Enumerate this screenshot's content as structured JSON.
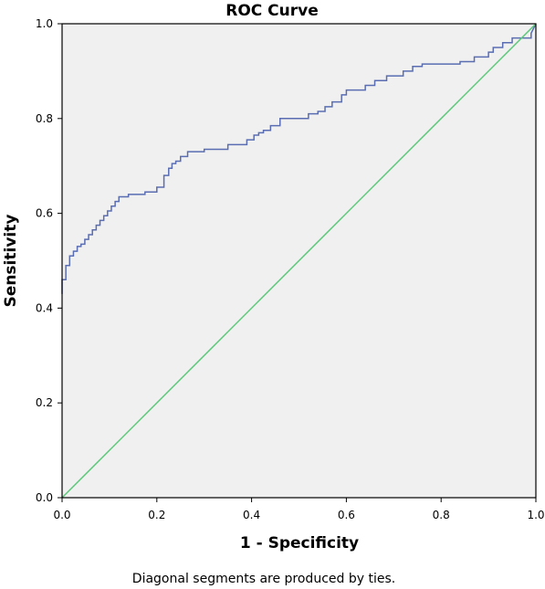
{
  "chart_data": {
    "type": "line",
    "title": "ROC Curve",
    "xlabel": "1 - Specificity",
    "ylabel": "Sensitivity",
    "xlim": [
      0.0,
      1.0
    ],
    "ylim": [
      0.0,
      1.0
    ],
    "x_ticks": [
      "0.0",
      "0.2",
      "0.4",
      "0.6",
      "0.8",
      "1.0"
    ],
    "y_ticks": [
      "0.0",
      "0.2",
      "0.4",
      "0.6",
      "0.8",
      "1.0"
    ],
    "grid": false,
    "plot_background": "#f0f0f0",
    "series": [
      {
        "color": "#5a6db2",
        "step": true,
        "x": [
          0.0,
          0.0,
          0.008,
          0.008,
          0.016,
          0.016,
          0.024,
          0.024,
          0.032,
          0.032,
          0.04,
          0.04,
          0.048,
          0.048,
          0.056,
          0.056,
          0.064,
          0.064,
          0.072,
          0.072,
          0.08,
          0.08,
          0.088,
          0.088,
          0.096,
          0.096,
          0.104,
          0.104,
          0.112,
          0.112,
          0.12,
          0.12,
          0.14,
          0.14,
          0.175,
          0.175,
          0.2,
          0.2,
          0.215,
          0.215,
          0.225,
          0.225,
          0.232,
          0.232,
          0.24,
          0.24,
          0.25,
          0.25,
          0.265,
          0.265,
          0.3,
          0.3,
          0.35,
          0.35,
          0.39,
          0.39,
          0.405,
          0.405,
          0.415,
          0.415,
          0.425,
          0.425,
          0.44,
          0.44,
          0.46,
          0.46,
          0.52,
          0.52,
          0.54,
          0.54,
          0.555,
          0.555,
          0.57,
          0.57,
          0.59,
          0.59,
          0.6,
          0.6,
          0.64,
          0.64,
          0.66,
          0.66,
          0.685,
          0.685,
          0.72,
          0.72,
          0.74,
          0.74,
          0.76,
          0.76,
          0.84,
          0.84,
          0.87,
          0.87,
          0.9,
          0.9,
          0.91,
          0.91,
          0.93,
          0.93,
          0.95,
          0.95,
          0.99,
          0.99,
          1.0
        ],
        "y": [
          0.43,
          0.46,
          0.46,
          0.49,
          0.49,
          0.51,
          0.51,
          0.52,
          0.52,
          0.53,
          0.53,
          0.535,
          0.535,
          0.545,
          0.545,
          0.555,
          0.555,
          0.565,
          0.565,
          0.575,
          0.575,
          0.585,
          0.585,
          0.595,
          0.595,
          0.605,
          0.605,
          0.615,
          0.615,
          0.625,
          0.625,
          0.635,
          0.635,
          0.64,
          0.64,
          0.645,
          0.645,
          0.655,
          0.655,
          0.68,
          0.68,
          0.695,
          0.695,
          0.705,
          0.705,
          0.71,
          0.71,
          0.72,
          0.72,
          0.73,
          0.73,
          0.735,
          0.735,
          0.745,
          0.745,
          0.755,
          0.755,
          0.765,
          0.765,
          0.77,
          0.77,
          0.775,
          0.775,
          0.785,
          0.785,
          0.8,
          0.8,
          0.81,
          0.81,
          0.815,
          0.815,
          0.825,
          0.825,
          0.835,
          0.835,
          0.85,
          0.85,
          0.86,
          0.86,
          0.87,
          0.87,
          0.88,
          0.88,
          0.89,
          0.89,
          0.9,
          0.9,
          0.91,
          0.91,
          0.915,
          0.915,
          0.92,
          0.92,
          0.93,
          0.93,
          0.94,
          0.94,
          0.95,
          0.95,
          0.96,
          0.96,
          0.97,
          0.97,
          0.98,
          1.0
        ]
      },
      {
        "color": "#5ac878",
        "x": [
          0.0,
          1.0
        ],
        "y": [
          0.0,
          1.0
        ]
      }
    ],
    "annotations": [
      "Diagonal segments are produced by ties."
    ]
  }
}
